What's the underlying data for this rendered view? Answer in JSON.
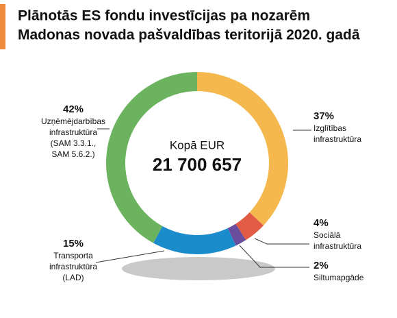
{
  "chart_data": {
    "type": "pie",
    "title": [
      "Plānotās ES fondu investīcijas pa nozarēm",
      "Madonas novada pašvaldības teritorijā 2020. gadā"
    ],
    "center_label": "Kopā EUR",
    "total": "21 700 657",
    "categories": [
      [
        "Izglītības",
        "infrastruktūra"
      ],
      [
        "Sociālā",
        "infrastruktūra"
      ],
      [
        "Siltumapgāde"
      ],
      [
        "Transporta",
        "infrastruktūra",
        "(LAD)"
      ],
      [
        "Uzņēmējdarbības",
        "infrastruktūra",
        "(SAM 3.3.1.,",
        "SAM 5.6.2.)"
      ]
    ],
    "values": [
      37,
      4,
      2,
      15,
      42
    ],
    "value_labels": [
      "37%",
      "4%",
      "2%",
      "15%",
      "42%"
    ],
    "colors": [
      "#f5b84f",
      "#e25b45",
      "#6a4d9c",
      "#1b8ccb",
      "#6cb35f"
    ]
  }
}
